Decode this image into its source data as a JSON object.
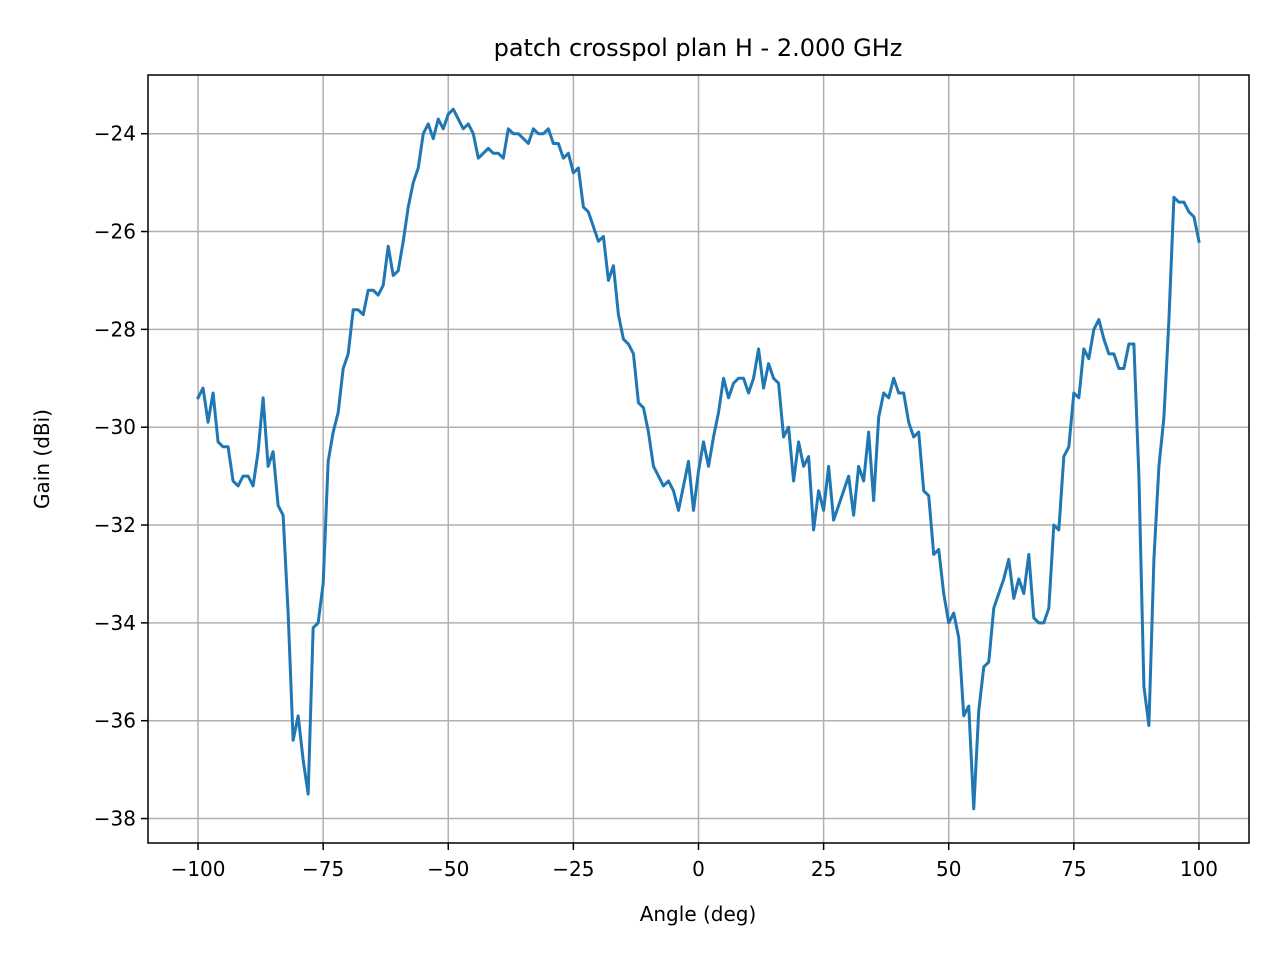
{
  "chart_data": {
    "type": "line",
    "title": "patch crosspol plan H - 2.000 GHz",
    "xlabel": "Angle (deg)",
    "ylabel": "Gain (dBi)",
    "xlim": [
      -110,
      110
    ],
    "ylim": [
      -38.5,
      -22.8
    ],
    "xticks": [
      -100,
      -75,
      -50,
      -25,
      0,
      25,
      50,
      75,
      100
    ],
    "xtick_labels": [
      "−100",
      "−75",
      "−50",
      "−25",
      "0",
      "25",
      "50",
      "75",
      "100"
    ],
    "yticks": [
      -38,
      -36,
      -34,
      -32,
      -30,
      -28,
      -26,
      -24
    ],
    "ytick_labels": [
      "−38",
      "−36",
      "−34",
      "−32",
      "−30",
      "−28",
      "−26",
      "−24"
    ],
    "grid": true,
    "legend": "none",
    "line_color": "#1f77b4",
    "grid_color": "#b0b0b0",
    "series": [
      {
        "values": [
          [
            -100,
            -29.4
          ],
          [
            -99,
            -29.2
          ],
          [
            -98,
            -29.9
          ],
          [
            -97,
            -29.3
          ],
          [
            -96,
            -30.3
          ],
          [
            -95,
            -30.4
          ],
          [
            -94,
            -30.4
          ],
          [
            -93,
            -31.1
          ],
          [
            -92,
            -31.2
          ],
          [
            -91,
            -31.0
          ],
          [
            -90,
            -31.0
          ],
          [
            -89,
            -31.2
          ],
          [
            -88,
            -30.5
          ],
          [
            -87,
            -29.4
          ],
          [
            -86,
            -30.8
          ],
          [
            -85,
            -30.5
          ],
          [
            -84,
            -31.6
          ],
          [
            -83,
            -31.8
          ],
          [
            -82,
            -33.8
          ],
          [
            -81,
            -36.4
          ],
          [
            -80,
            -35.9
          ],
          [
            -79,
            -36.8
          ],
          [
            -78,
            -37.5
          ],
          [
            -77,
            -34.1
          ],
          [
            -76,
            -34.0
          ],
          [
            -75,
            -33.2
          ],
          [
            -74,
            -30.7
          ],
          [
            -73,
            -30.1
          ],
          [
            -72,
            -29.7
          ],
          [
            -71,
            -28.8
          ],
          [
            -70,
            -28.5
          ],
          [
            -69,
            -27.6
          ],
          [
            -68,
            -27.6
          ],
          [
            -67,
            -27.7
          ],
          [
            -66,
            -27.2
          ],
          [
            -65,
            -27.2
          ],
          [
            -64,
            -27.3
          ],
          [
            -63,
            -27.1
          ],
          [
            -62,
            -26.3
          ],
          [
            -61,
            -26.9
          ],
          [
            -60,
            -26.8
          ],
          [
            -59,
            -26.2
          ],
          [
            -58,
            -25.5
          ],
          [
            -57,
            -25.0
          ],
          [
            -56,
            -24.7
          ],
          [
            -55,
            -24.0
          ],
          [
            -54,
            -23.8
          ],
          [
            -53,
            -24.1
          ],
          [
            -52,
            -23.7
          ],
          [
            -51,
            -23.9
          ],
          [
            -50,
            -23.6
          ],
          [
            -49,
            -23.5
          ],
          [
            -48,
            -23.7
          ],
          [
            -47,
            -23.9
          ],
          [
            -46,
            -23.8
          ],
          [
            -45,
            -24.0
          ],
          [
            -44,
            -24.5
          ],
          [
            -43,
            -24.4
          ],
          [
            -42,
            -24.3
          ],
          [
            -41,
            -24.4
          ],
          [
            -40,
            -24.4
          ],
          [
            -39,
            -24.5
          ],
          [
            -38,
            -23.9
          ],
          [
            -37,
            -24.0
          ],
          [
            -36,
            -24.0
          ],
          [
            -35,
            -24.1
          ],
          [
            -34,
            -24.2
          ],
          [
            -33,
            -23.9
          ],
          [
            -32,
            -24.0
          ],
          [
            -31,
            -24.0
          ],
          [
            -30,
            -23.9
          ],
          [
            -29,
            -24.2
          ],
          [
            -28,
            -24.2
          ],
          [
            -27,
            -24.5
          ],
          [
            -26,
            -24.4
          ],
          [
            -25,
            -24.8
          ],
          [
            -24,
            -24.7
          ],
          [
            -23,
            -25.5
          ],
          [
            -22,
            -25.6
          ],
          [
            -21,
            -25.9
          ],
          [
            -20,
            -26.2
          ],
          [
            -19,
            -26.1
          ],
          [
            -18,
            -27.0
          ],
          [
            -17,
            -26.7
          ],
          [
            -16,
            -27.7
          ],
          [
            -15,
            -28.2
          ],
          [
            -14,
            -28.3
          ],
          [
            -13,
            -28.5
          ],
          [
            -12,
            -29.5
          ],
          [
            -11,
            -29.6
          ],
          [
            -10,
            -30.1
          ],
          [
            -9,
            -30.8
          ],
          [
            -8,
            -31.0
          ],
          [
            -7,
            -31.2
          ],
          [
            -6,
            -31.1
          ],
          [
            -5,
            -31.3
          ],
          [
            -4,
            -31.7
          ],
          [
            -3,
            -31.2
          ],
          [
            -2,
            -30.7
          ],
          [
            -1,
            -31.7
          ],
          [
            0,
            -30.9
          ],
          [
            1,
            -30.3
          ],
          [
            2,
            -30.8
          ],
          [
            3,
            -30.2
          ],
          [
            4,
            -29.7
          ],
          [
            5,
            -29.0
          ],
          [
            6,
            -29.4
          ],
          [
            7,
            -29.1
          ],
          [
            8,
            -29.0
          ],
          [
            9,
            -29.0
          ],
          [
            10,
            -29.3
          ],
          [
            11,
            -29.0
          ],
          [
            12,
            -28.4
          ],
          [
            13,
            -29.2
          ],
          [
            14,
            -28.7
          ],
          [
            15,
            -29.0
          ],
          [
            16,
            -29.1
          ],
          [
            17,
            -30.2
          ],
          [
            18,
            -30.0
          ],
          [
            19,
            -31.1
          ],
          [
            20,
            -30.3
          ],
          [
            21,
            -30.8
          ],
          [
            22,
            -30.6
          ],
          [
            23,
            -32.1
          ],
          [
            24,
            -31.3
          ],
          [
            25,
            -31.7
          ],
          [
            26,
            -30.8
          ],
          [
            27,
            -31.9
          ],
          [
            28,
            -31.6
          ],
          [
            29,
            -31.3
          ],
          [
            30,
            -31.0
          ],
          [
            31,
            -31.8
          ],
          [
            32,
            -30.8
          ],
          [
            33,
            -31.1
          ],
          [
            34,
            -30.1
          ],
          [
            35,
            -31.5
          ],
          [
            36,
            -29.8
          ],
          [
            37,
            -29.3
          ],
          [
            38,
            -29.4
          ],
          [
            39,
            -29.0
          ],
          [
            40,
            -29.3
          ],
          [
            41,
            -29.3
          ],
          [
            42,
            -29.9
          ],
          [
            43,
            -30.2
          ],
          [
            44,
            -30.1
          ],
          [
            45,
            -31.3
          ],
          [
            46,
            -31.4
          ],
          [
            47,
            -32.6
          ],
          [
            48,
            -32.5
          ],
          [
            49,
            -33.4
          ],
          [
            50,
            -34.0
          ],
          [
            51,
            -33.8
          ],
          [
            52,
            -34.3
          ],
          [
            53,
            -35.9
          ],
          [
            54,
            -35.7
          ],
          [
            55,
            -37.8
          ],
          [
            56,
            -35.8
          ],
          [
            57,
            -34.9
          ],
          [
            58,
            -34.8
          ],
          [
            59,
            -33.7
          ],
          [
            60,
            -33.4
          ],
          [
            61,
            -33.1
          ],
          [
            62,
            -32.7
          ],
          [
            63,
            -33.5
          ],
          [
            64,
            -33.1
          ],
          [
            65,
            -33.4
          ],
          [
            66,
            -32.6
          ],
          [
            67,
            -33.9
          ],
          [
            68,
            -34.0
          ],
          [
            69,
            -34.0
          ],
          [
            70,
            -33.7
          ],
          [
            71,
            -32.0
          ],
          [
            72,
            -32.1
          ],
          [
            73,
            -30.6
          ],
          [
            74,
            -30.4
          ],
          [
            75,
            -29.3
          ],
          [
            76,
            -29.4
          ],
          [
            77,
            -28.4
          ],
          [
            78,
            -28.6
          ],
          [
            79,
            -28.0
          ],
          [
            80,
            -27.8
          ],
          [
            81,
            -28.2
          ],
          [
            82,
            -28.5
          ],
          [
            83,
            -28.5
          ],
          [
            84,
            -28.8
          ],
          [
            85,
            -28.8
          ],
          [
            86,
            -28.3
          ],
          [
            87,
            -28.3
          ],
          [
            88,
            -31.0
          ],
          [
            89,
            -35.3
          ],
          [
            90,
            -36.1
          ],
          [
            91,
            -32.7
          ],
          [
            92,
            -30.8
          ],
          [
            93,
            -29.8
          ],
          [
            94,
            -27.8
          ],
          [
            95,
            -25.3
          ],
          [
            96,
            -25.4
          ],
          [
            97,
            -25.4
          ],
          [
            98,
            -25.6
          ],
          [
            99,
            -25.7
          ],
          [
            100,
            -26.2
          ]
        ]
      }
    ]
  }
}
